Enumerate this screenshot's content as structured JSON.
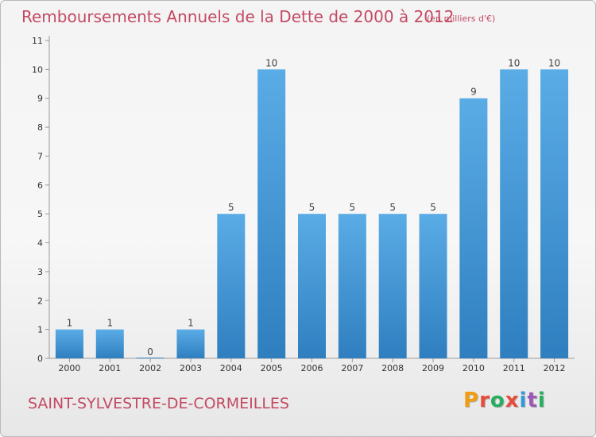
{
  "header": {
    "title": "Remboursements Annuels de la Dette de 2000 à 2012",
    "subtitle": "(en milliers d'€)"
  },
  "footer": {
    "commune": "SAINT-SYLVESTRE-DE-CORMEILLES",
    "logo_text": "Proxiti",
    "logo_colors": [
      "#f39c12",
      "#e74c3c",
      "#27ae60",
      "#e74c3c",
      "#3498db",
      "#9b59b6",
      "#27ae60"
    ]
  },
  "colors": {
    "title": "#c34a63",
    "bar_top": "#5aace6",
    "bar_bottom": "#2f7fc0"
  },
  "chart_data": {
    "type": "bar",
    "title": "Remboursements Annuels de la Dette de 2000 à 2012",
    "subtitle": "(en milliers d'€)",
    "categories": [
      "2000",
      "2001",
      "2002",
      "2003",
      "2004",
      "2005",
      "2006",
      "2007",
      "2008",
      "2009",
      "2010",
      "2011",
      "2012"
    ],
    "values": [
      1,
      1,
      0,
      1,
      5,
      10,
      5,
      5,
      5,
      5,
      9,
      10,
      10
    ],
    "value_labels": [
      "1",
      "1",
      "0",
      "1",
      "5",
      "10",
      "5",
      "5",
      "5",
      "5",
      "9",
      "10",
      "10"
    ],
    "yticks": [
      0,
      1,
      2,
      3,
      4,
      5,
      6,
      7,
      8,
      9,
      10,
      11
    ],
    "ylim": [
      0,
      11
    ],
    "xlabel": "",
    "ylabel": "",
    "grid": false,
    "legend": "none"
  }
}
